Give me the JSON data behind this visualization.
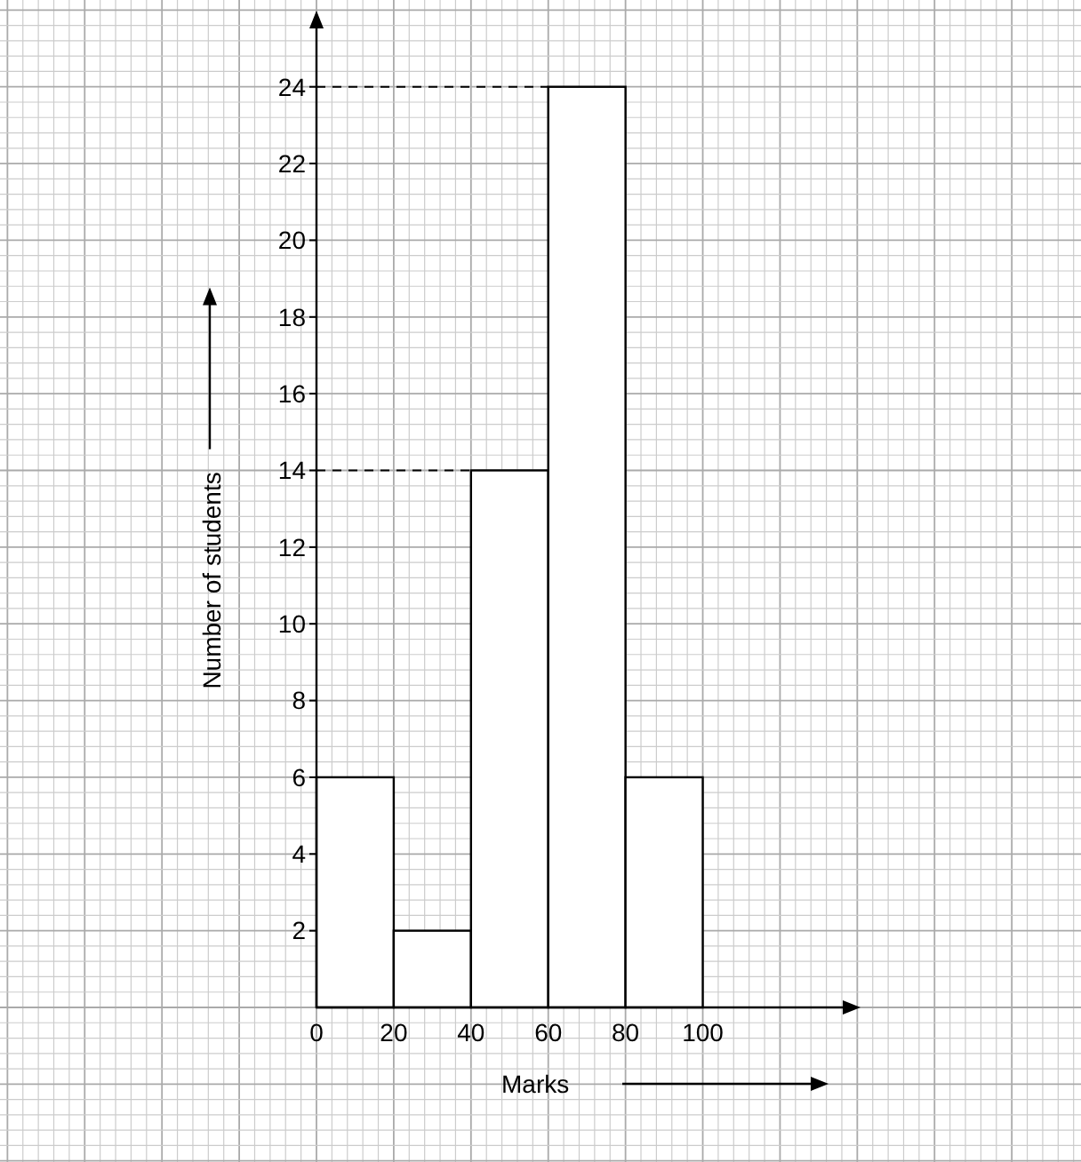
{
  "chart_data": {
    "type": "histogram",
    "xlabel": "Marks",
    "ylabel": "Number of students",
    "bins": [
      0,
      20,
      40,
      60,
      80,
      100
    ],
    "values": [
      6,
      2,
      14,
      24,
      6
    ],
    "color": "#ffffff",
    "xlim": [
      0,
      139
    ],
    "ylim": [
      0,
      25.8
    ],
    "xticks": [
      0,
      20,
      40,
      60,
      80,
      100
    ],
    "yticks": [
      2,
      4,
      6,
      8,
      10,
      12,
      14,
      16,
      18,
      20,
      22,
      24
    ],
    "grid": true,
    "ref_lines": [
      {
        "axis": "y",
        "value": 14,
        "line_style": "dashed"
      },
      {
        "axis": "y",
        "value": 24,
        "line_style": "dashed"
      }
    ]
  }
}
